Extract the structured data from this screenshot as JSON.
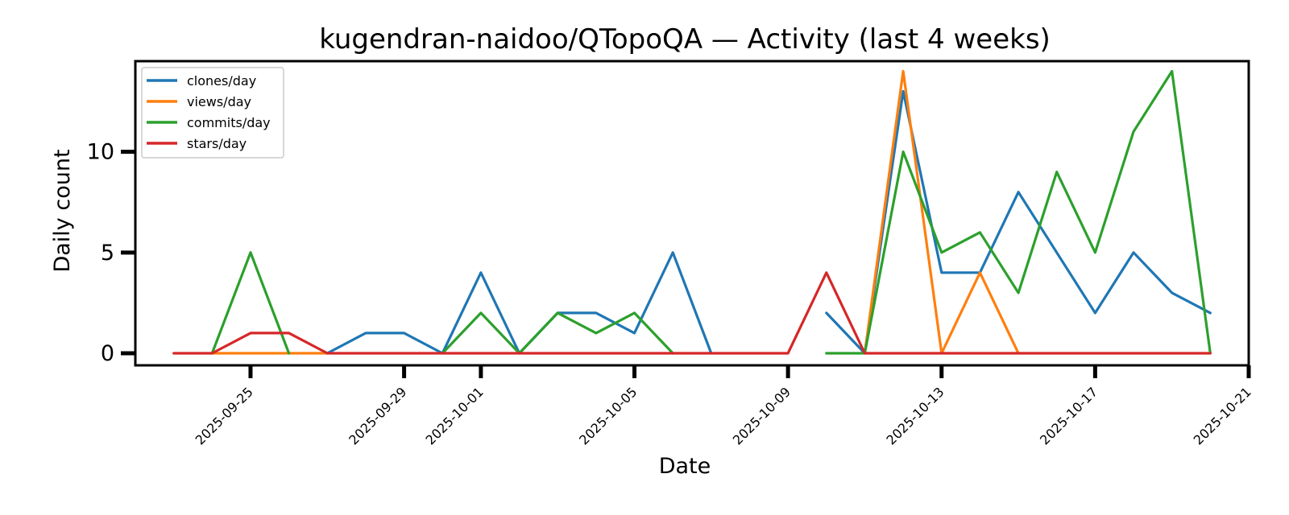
{
  "chart_data": {
    "type": "line",
    "title": "kugendran-naidoo/QTopoQA — Activity (last 4 weeks)",
    "xlabel": "Date",
    "ylabel": "Daily count",
    "x": [
      "2025-09-23",
      "2025-09-24",
      "2025-09-25",
      "2025-09-26",
      "2025-09-27",
      "2025-09-28",
      "2025-09-29",
      "2025-09-30",
      "2025-10-01",
      "2025-10-02",
      "2025-10-03",
      "2025-10-04",
      "2025-10-05",
      "2025-10-06",
      "2025-10-07",
      "2025-10-08",
      "2025-10-09",
      "2025-10-10",
      "2025-10-11",
      "2025-10-12",
      "2025-10-13",
      "2025-10-14",
      "2025-10-15",
      "2025-10-16",
      "2025-10-17",
      "2025-10-18",
      "2025-10-19",
      "2025-10-20"
    ],
    "xlim": [
      "2025-09-22",
      "2025-10-21"
    ],
    "xticks": [
      "2025-09-25",
      "2025-09-29",
      "2025-10-01",
      "2025-10-05",
      "2025-10-09",
      "2025-10-13",
      "2025-10-17",
      "2025-10-21"
    ],
    "ylim": [
      -0.6,
      14.5
    ],
    "yticks": [
      0,
      5,
      10
    ],
    "legend_position": "top-left",
    "grid": false,
    "series": [
      {
        "name": "clones/day",
        "color": "#1f77b4",
        "values": [
          null,
          0,
          null,
          null,
          0,
          1,
          1,
          0,
          4,
          0,
          2,
          2,
          1,
          5,
          0,
          null,
          null,
          2,
          0,
          13,
          4,
          4,
          8,
          5,
          2,
          5,
          3,
          2
        ]
      },
      {
        "name": "views/day",
        "color": "#ff7f0e",
        "values": [
          null,
          0,
          0,
          0,
          0,
          null,
          null,
          null,
          null,
          null,
          null,
          null,
          null,
          null,
          null,
          null,
          null,
          null,
          0,
          14,
          0,
          4,
          0,
          null,
          null,
          null,
          null,
          null
        ]
      },
      {
        "name": "commits/day",
        "color": "#2ca02c",
        "values": [
          null,
          0,
          5,
          0,
          null,
          null,
          null,
          0,
          2,
          0,
          2,
          1,
          2,
          0,
          null,
          null,
          null,
          0,
          0,
          10,
          5,
          6,
          3,
          9,
          5,
          11,
          14,
          0
        ]
      },
      {
        "name": "stars/day",
        "color": "#d62728",
        "values": [
          0,
          0,
          1,
          1,
          0,
          0,
          0,
          0,
          0,
          0,
          0,
          0,
          0,
          0,
          0,
          0,
          0,
          4,
          0,
          0,
          0,
          0,
          0,
          0,
          0,
          0,
          0,
          0
        ]
      }
    ]
  }
}
